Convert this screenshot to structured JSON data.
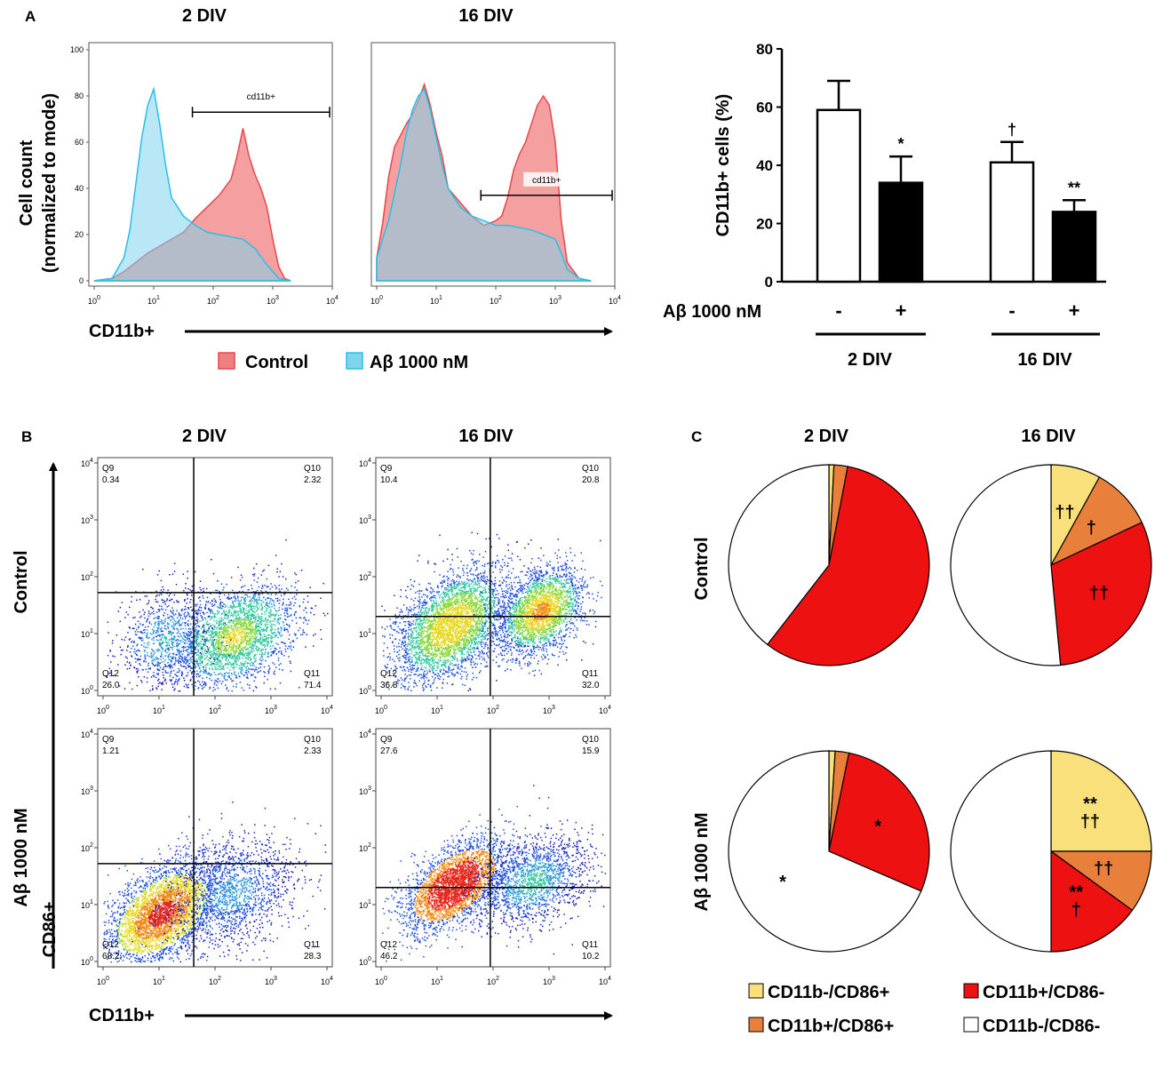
{
  "colors": {
    "control_fill": "#f08080",
    "control_line": "#e8474b",
    "abeta_fill": "#7fd3ec",
    "abeta_line": "#26c0e8",
    "overlap": "#8aa2b6",
    "q_yellow": "#f9e07a",
    "q_orange": "#e8803c",
    "q_red": "#ee1111",
    "q_white": "#ffffff"
  },
  "panel_a": {
    "letter": "A",
    "titles": [
      "2 DIV",
      "16 DIV"
    ],
    "ylabel_line1": "Cell count",
    "ylabel_line2": "(normalized to mode)",
    "xlabel": "CD11b+",
    "gate_label": "cd11b+",
    "y_ticks": [
      "0",
      "20",
      "40",
      "60",
      "80",
      "100"
    ],
    "x_ticks": [
      {
        "base": "10",
        "exp": "0"
      },
      {
        "base": "10",
        "exp": "1"
      },
      {
        "base": "10",
        "exp": "2"
      },
      {
        "base": "10",
        "exp": "3"
      },
      {
        "base": "10",
        "exp": "4"
      }
    ],
    "legend": [
      "Control",
      "Aβ 1000 nM"
    ]
  },
  "chart_data": [
    {
      "type": "area",
      "title": "2 DIV",
      "xlabel": "CD11b+",
      "ylabel": "Cell count (normalized to mode)",
      "x_scale": "log10",
      "xlim": [
        0,
        4
      ],
      "ylim": [
        0,
        100
      ],
      "gate": {
        "label": "cd11b+",
        "from_log": 1.65,
        "to_log": 4.0,
        "y": 73
      },
      "series": [
        {
          "name": "Control",
          "x": [
            0,
            0.3,
            0.5,
            0.7,
            0.9,
            1.1,
            1.3,
            1.5,
            1.7,
            1.9,
            2.1,
            2.3,
            2.4,
            2.5,
            2.6,
            2.7,
            2.8,
            2.9,
            3.0,
            3.1,
            3.2,
            3.3
          ],
          "y": [
            0,
            1,
            4,
            8,
            12,
            15,
            18,
            21,
            27,
            32,
            37,
            44,
            54,
            66,
            54,
            46,
            40,
            32,
            18,
            6,
            1,
            0
          ]
        },
        {
          "name": "Aβ 1000 nM",
          "x": [
            0,
            0.3,
            0.5,
            0.6,
            0.7,
            0.8,
            0.9,
            1.0,
            1.1,
            1.2,
            1.3,
            1.5,
            1.7,
            1.9,
            2.1,
            2.3,
            2.5,
            2.7,
            2.9,
            3.1,
            3.3
          ],
          "y": [
            0,
            1,
            10,
            22,
            42,
            62,
            76,
            83,
            68,
            50,
            36,
            28,
            24,
            21,
            20,
            19,
            18,
            14,
            7,
            1,
            0
          ]
        }
      ]
    },
    {
      "type": "area",
      "title": "16 DIV",
      "xlabel": "CD11b+",
      "ylabel": "Cell count (normalized to mode)",
      "x_scale": "log10",
      "xlim": [
        0,
        4
      ],
      "ylim": [
        0,
        100
      ],
      "gate": {
        "label": "cd11b+",
        "from_log": 1.75,
        "to_log": 4.0,
        "y": 37
      },
      "series": [
        {
          "name": "Control",
          "x": [
            0,
            0.1,
            0.2,
            0.3,
            0.4,
            0.5,
            0.6,
            0.7,
            0.8,
            0.9,
            1.0,
            1.1,
            1.2,
            1.4,
            1.6,
            1.8,
            2.0,
            2.1,
            2.2,
            2.3,
            2.4,
            2.5,
            2.6,
            2.7,
            2.8,
            2.9,
            3.0,
            3.1,
            3.2,
            3.4,
            3.6
          ],
          "y": [
            10,
            25,
            45,
            58,
            63,
            68,
            72,
            78,
            85,
            76,
            64,
            54,
            40,
            34,
            28,
            24,
            26,
            28,
            36,
            48,
            55,
            60,
            68,
            76,
            80,
            76,
            60,
            26,
            8,
            1,
            0
          ]
        },
        {
          "name": "Aβ 1000 nM",
          "x": [
            0,
            0.1,
            0.2,
            0.3,
            0.4,
            0.5,
            0.6,
            0.7,
            0.8,
            0.9,
            1.0,
            1.1,
            1.2,
            1.4,
            1.6,
            1.8,
            2.0,
            2.2,
            2.4,
            2.6,
            2.8,
            3.0,
            3.1,
            3.2,
            3.4,
            3.6
          ],
          "y": [
            10,
            18,
            26,
            38,
            50,
            64,
            74,
            80,
            83,
            74,
            62,
            50,
            40,
            32,
            28,
            26,
            24,
            24,
            23,
            22,
            20,
            18,
            12,
            5,
            1,
            0
          ]
        }
      ]
    },
    {
      "type": "bar",
      "title": "",
      "ylabel": "CD11b+ cells (%)",
      "ylim": [
        0,
        80
      ],
      "y_ticks": [
        0,
        20,
        40,
        60,
        80
      ],
      "categories": [
        "-",
        "+",
        "-",
        "+"
      ],
      "groups": [
        "2 DIV",
        "16 DIV"
      ],
      "row_label": "Aβ 1000 nM",
      "values": [
        59,
        34,
        41,
        24
      ],
      "errors": [
        10,
        9,
        7,
        4
      ],
      "significance": [
        "",
        "*",
        "†",
        "**"
      ],
      "bar_colors": [
        "#ffffff",
        "#000000",
        "#ffffff",
        "#000000"
      ]
    },
    {
      "type": "scatter",
      "title": "2 DIV",
      "row": "Control",
      "x_scale": "log10",
      "y_scale": "log10",
      "xlim": [
        0,
        4
      ],
      "ylim": [
        0,
        4
      ],
      "gate_x_log": 1.62,
      "gate_y_log": 1.72,
      "quadrants": {
        "Q9": "0.34",
        "Q10": "2.32",
        "Q11": "71.4",
        "Q12": "26.0"
      }
    },
    {
      "type": "scatter",
      "title": "16 DIV",
      "row": "Control",
      "x_scale": "log10",
      "y_scale": "log10",
      "xlim": [
        0,
        4
      ],
      "ylim": [
        0,
        4
      ],
      "gate_x_log": 1.95,
      "gate_y_log": 1.3,
      "quadrants": {
        "Q9": "10.4",
        "Q10": "20.8",
        "Q11": "32.0",
        "Q12": "36.8"
      }
    },
    {
      "type": "scatter",
      "title": "2 DIV",
      "row": "Aβ 1000 nM",
      "x_scale": "log10",
      "y_scale": "log10",
      "xlim": [
        0,
        4
      ],
      "ylim": [
        0,
        4
      ],
      "gate_x_log": 1.62,
      "gate_y_log": 1.72,
      "quadrants": {
        "Q9": "1.21",
        "Q10": "2.33",
        "Q11": "28.3",
        "Q12": "68.2"
      }
    },
    {
      "type": "scatter",
      "title": "16 DIV",
      "row": "Aβ 1000 nM",
      "x_scale": "log10",
      "y_scale": "log10",
      "xlim": [
        0,
        4
      ],
      "ylim": [
        0,
        4
      ],
      "gate_x_log": 1.95,
      "gate_y_log": 1.3,
      "quadrants": {
        "Q9": "27.6",
        "Q10": "15.9",
        "Q11": "10.2",
        "Q12": "46.2"
      }
    },
    {
      "type": "pie",
      "title": "2 DIV",
      "row": "Control",
      "labels": [
        "CD11b-/CD86+",
        "CD11b+/CD86+",
        "CD11b+/CD86-",
        "CD11b-/CD86-"
      ],
      "values": [
        0.8,
        2.2,
        57.5,
        39.5
      ],
      "marks": [
        "",
        "",
        "",
        ""
      ]
    },
    {
      "type": "pie",
      "title": "16 DIV",
      "row": "Control",
      "labels": [
        "CD11b-/CD86+",
        "CD11b+/CD86+",
        "CD11b+/CD86-",
        "CD11b-/CD86-"
      ],
      "values": [
        8,
        10,
        30.5,
        51.5
      ],
      "marks": [
        "††",
        "†",
        "††",
        ""
      ]
    },
    {
      "type": "pie",
      "title": "2 DIV",
      "row": "Aβ 1000 nM",
      "labels": [
        "CD11b-/CD86+",
        "CD11b+/CD86+",
        "CD11b+/CD86-",
        "CD11b-/CD86-"
      ],
      "values": [
        1,
        2.2,
        28.3,
        68.5
      ],
      "marks": [
        "",
        "",
        "*",
        "*"
      ]
    },
    {
      "type": "pie",
      "title": "16 DIV",
      "row": "Aβ 1000 nM",
      "labels": [
        "CD11b-/CD86+",
        "CD11b+/CD86+",
        "CD11b+/CD86-",
        "CD11b-/CD86-"
      ],
      "values": [
        25,
        10,
        15,
        50
      ],
      "marks": [
        "**\n††",
        "††",
        "**\n†",
        ""
      ]
    }
  ],
  "panel_b": {
    "letter": "B",
    "titles": [
      "2 DIV",
      "16 DIV"
    ],
    "row_labels": [
      "Control",
      "Aβ 1000 nM"
    ],
    "ylabel": "CD86+",
    "xlabel": "CD11b+",
    "quad_names": [
      "Q9",
      "Q10",
      "Q11",
      "Q12"
    ]
  },
  "panel_c": {
    "letter": "C",
    "titles": [
      "2 DIV",
      "16 DIV"
    ],
    "row_labels": [
      "Control",
      "Aβ 1000 nM"
    ],
    "legend": [
      "CD11b-/CD86+",
      "CD11b+/CD86-",
      "CD11b+/CD86+",
      "CD11b-/CD86-"
    ]
  },
  "bar_panel": {
    "row_label": "Aβ 1000 nM",
    "signs": [
      "-",
      "+",
      "-",
      "+"
    ],
    "groups": [
      "2 DIV",
      "16 DIV"
    ]
  }
}
